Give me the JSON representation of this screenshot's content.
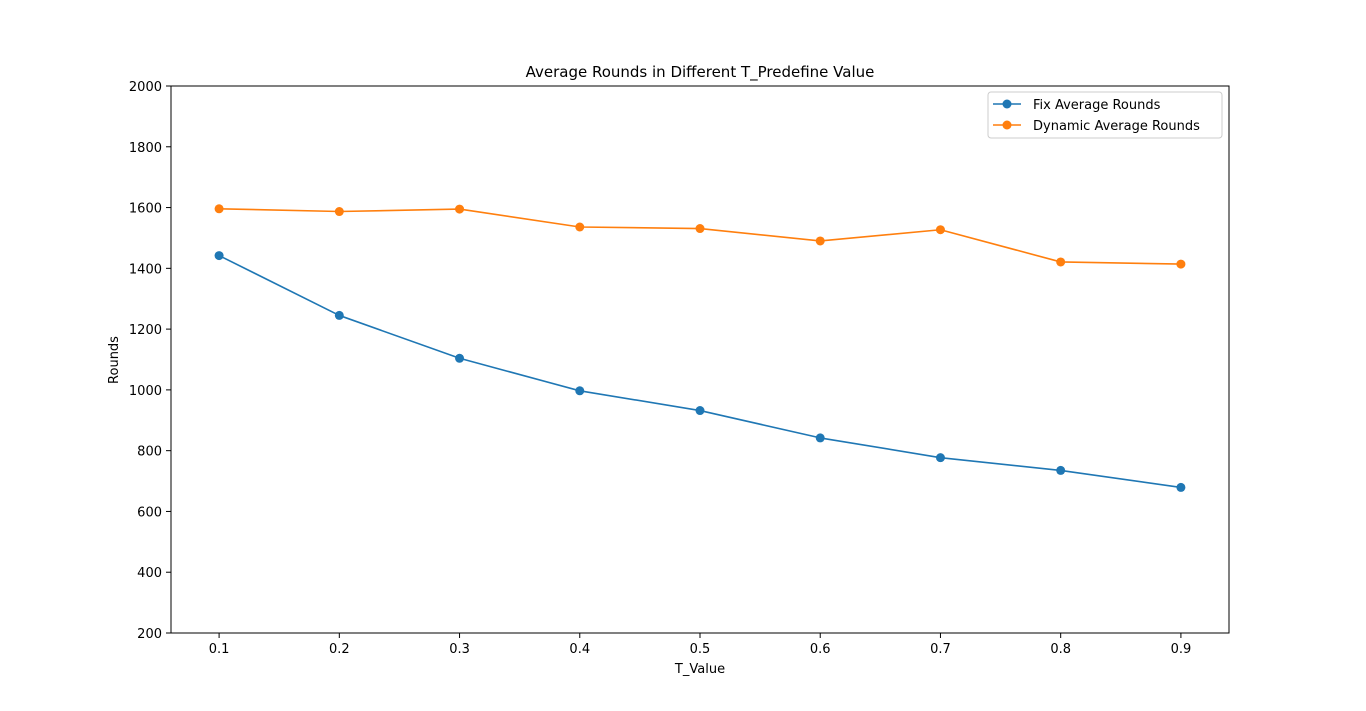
{
  "chart_data": {
    "type": "line",
    "title": "Average Rounds in Different T_Predefine Value",
    "xlabel": "T_Value",
    "ylabel": "Rounds",
    "x": [
      0.1,
      0.2,
      0.3,
      0.4,
      0.5,
      0.6,
      0.7,
      0.8,
      0.9
    ],
    "x_tick_labels": [
      "0.1",
      "0.2",
      "0.3",
      "0.4",
      "0.5",
      "0.6",
      "0.7",
      "0.8",
      "0.9"
    ],
    "xlim": [
      0.06,
      0.94
    ],
    "ylim": [
      200,
      2000
    ],
    "y_ticks": [
      200,
      400,
      600,
      800,
      1000,
      1200,
      1400,
      1600,
      1800,
      2000
    ],
    "y_tick_labels": [
      "200",
      "400",
      "600",
      "800",
      "1000",
      "1200",
      "1400",
      "1600",
      "1800",
      "2000"
    ],
    "grid": false,
    "legend_position": "top-right",
    "series": [
      {
        "name": "Fix Average Rounds",
        "color": "#1f77b4",
        "marker": "circle",
        "values": [
          1442,
          1245,
          1104,
          997,
          932,
          842,
          777,
          735,
          679
        ]
      },
      {
        "name": "Dynamic Average Rounds",
        "color": "#ff7f0e",
        "marker": "circle",
        "values": [
          1596,
          1587,
          1595,
          1536,
          1531,
          1490,
          1527,
          1421,
          1414
        ]
      }
    ]
  }
}
